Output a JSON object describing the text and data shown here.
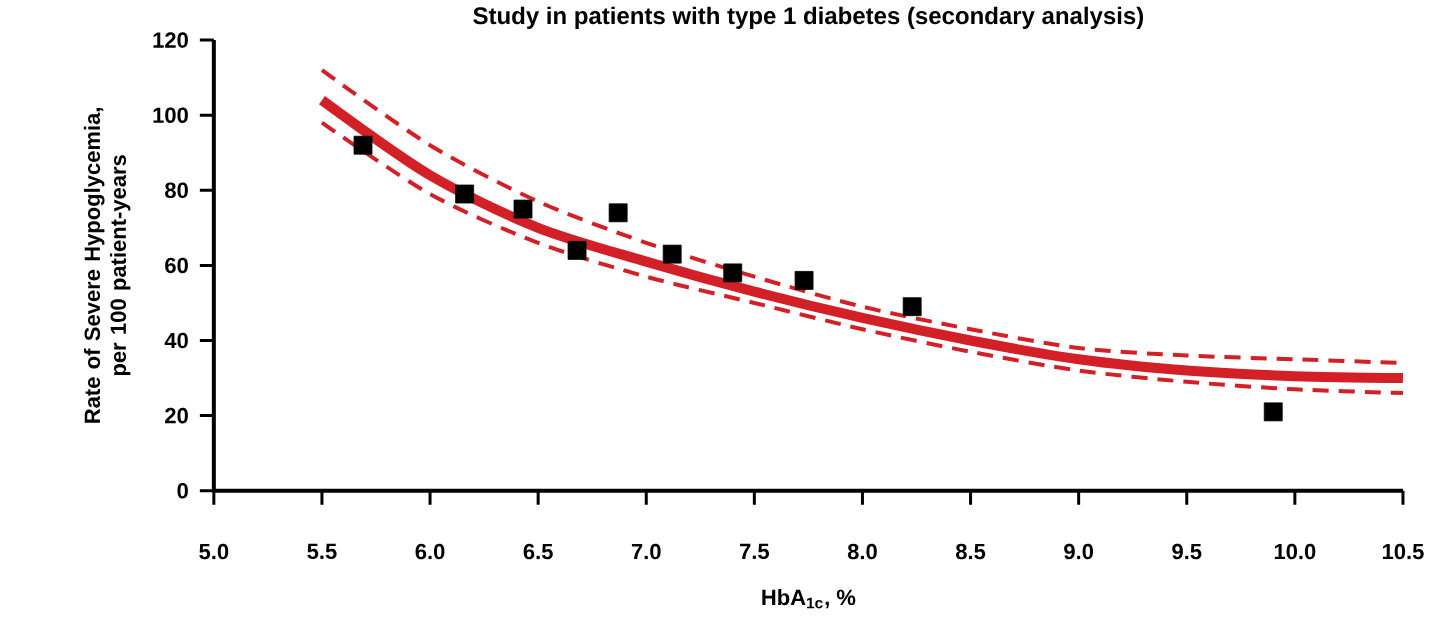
{
  "chart_data": {
    "type": "scatter",
    "title": "Study in patients with type 1 diabetes (secondary analysis)",
    "xlabel": "HbA$_{1c}$, %",
    "ylabel": "Rate of Severe Hypoglycemia, per 100 patient-years",
    "xlim": [
      5,
      10.5
    ],
    "xticks": [
      {
        "value": 5,
        "label": "5.0"
      },
      {
        "value": 5.5,
        "label": "5.5"
      },
      {
        "value": 6,
        "label": "6.0"
      },
      {
        "value": 6.5,
        "label": "6.5"
      },
      {
        "value": 7,
        "label": "7.0"
      },
      {
        "value": 7.5,
        "label": "7.5"
      },
      {
        "value": 8,
        "label": "8.0"
      },
      {
        "value": 8.5,
        "label": "8.5"
      },
      {
        "value": 9,
        "label": "9.0"
      },
      {
        "value": 9.5,
        "label": "9.5"
      },
      {
        "value": 10,
        "label": "10.0"
      },
      {
        "value": 10.5,
        "label": "10.5"
      }
    ],
    "ylim": [
      0,
      120
    ],
    "yticks": [
      0,
      20,
      40,
      60,
      80,
      100,
      120
    ],
    "series": [
      {
        "type": "line",
        "line_style": "dashed",
        "color": "#d32027",
        "x": [
          5.5,
          6.0,
          6.5,
          7.0,
          7.5,
          8.0,
          8.5,
          9.0,
          9.5,
          10.0,
          10.5
        ],
        "values": [
          112,
          92,
          77,
          66,
          57,
          49,
          43,
          38,
          36,
          35,
          34
        ]
      },
      {
        "type": "line",
        "line_style": "dashed",
        "color": "#d32027",
        "x": [
          5.5,
          6.0,
          6.5,
          7.0,
          7.5,
          8.0,
          8.5,
          9.0,
          9.5,
          10.0,
          10.5
        ],
        "values": [
          98,
          79,
          66,
          57,
          50,
          43,
          37,
          32,
          29,
          27,
          26
        ]
      },
      {
        "type": "line",
        "line_style": "solid",
        "color": "#d32027",
        "x": [
          5.5,
          6.0,
          6.5,
          7.0,
          7.5,
          8.0,
          8.5,
          9.0,
          9.5,
          10.0,
          10.5
        ],
        "values": [
          104,
          84,
          70,
          61,
          53,
          46,
          40,
          35,
          32,
          30.5,
          30
        ]
      },
      {
        "marker": "square",
        "color": "#000000",
        "x": [
          5.69,
          6.16,
          6.43,
          6.68,
          6.87,
          7.12,
          7.4,
          7.73,
          8.23,
          9.9
        ],
        "values": [
          92,
          79,
          75,
          64,
          74,
          63,
          58,
          56,
          49,
          21
        ]
      }
    ]
  }
}
